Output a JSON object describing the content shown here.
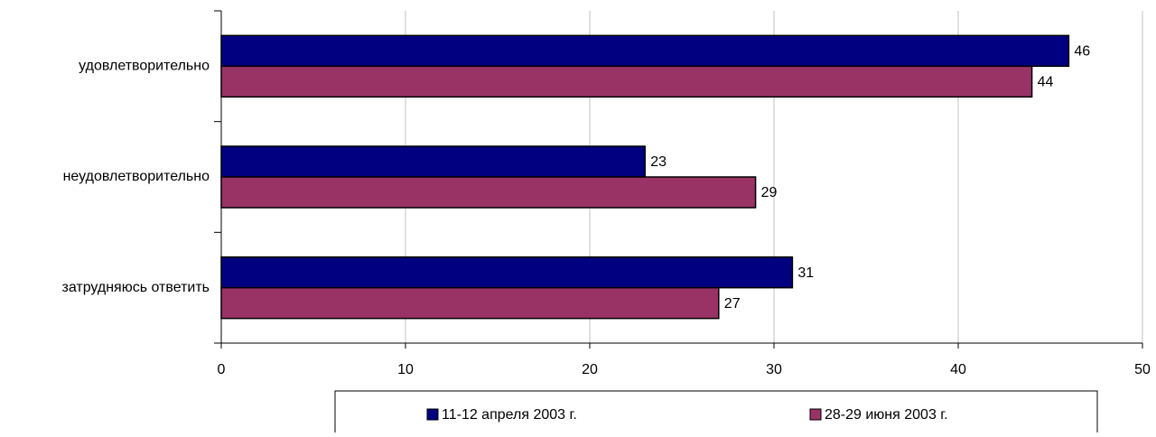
{
  "chart_data": {
    "type": "bar",
    "orientation": "horizontal",
    "categories": [
      "удовлетворительно",
      "неудовлетворительно",
      "затрудняюсь ответить"
    ],
    "series": [
      {
        "name": "11-12 апреля 2003 г.",
        "color": "#000080",
        "values": [
          46,
          23,
          31
        ]
      },
      {
        "name": "28-29 июня 2003 г.",
        "color": "#993366",
        "values": [
          44,
          29,
          27
        ]
      }
    ],
    "xlim": [
      0,
      50
    ],
    "xticks": [
      0,
      10,
      20,
      30,
      40,
      50
    ],
    "grid": true,
    "legend": "bottom"
  }
}
